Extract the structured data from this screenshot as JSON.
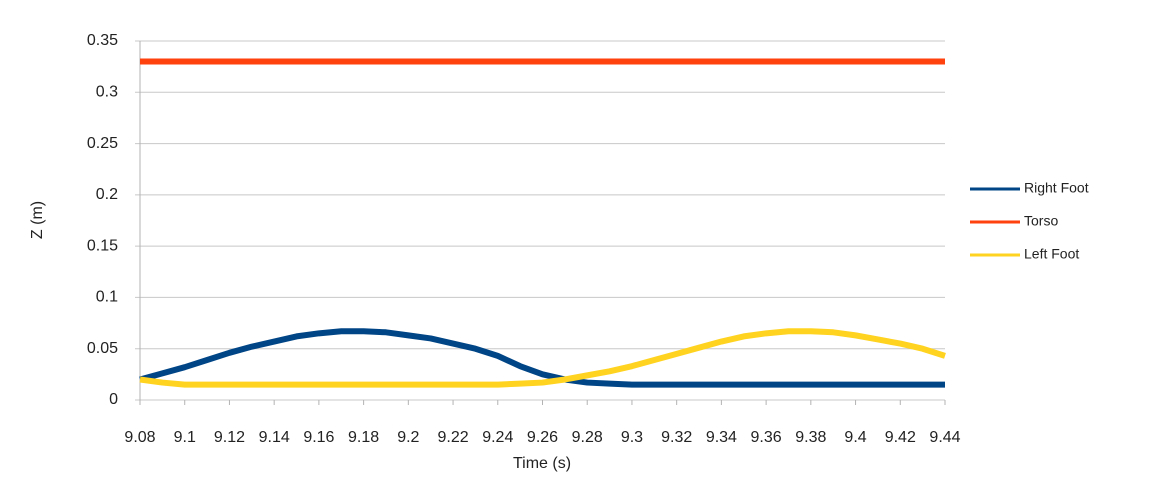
{
  "chart_data": {
    "type": "line",
    "x_label": "Time (s)",
    "y_label": "Z (m)",
    "x": [
      9.08,
      9.09,
      9.1,
      9.11,
      9.12,
      9.13,
      9.14,
      9.15,
      9.16,
      9.17,
      9.18,
      9.19,
      9.2,
      9.21,
      9.22,
      9.23,
      9.24,
      9.25,
      9.26,
      9.27,
      9.28,
      9.29,
      9.3,
      9.31,
      9.32,
      9.33,
      9.34,
      9.35,
      9.36,
      9.37,
      9.38,
      9.39,
      9.4,
      9.41,
      9.42,
      9.43,
      9.44
    ],
    "series": [
      {
        "name": "Right Foot",
        "color": "#004586",
        "values": [
          0.02,
          0.026,
          0.032,
          0.039,
          0.046,
          0.052,
          0.057,
          0.062,
          0.065,
          0.067,
          0.067,
          0.066,
          0.063,
          0.06,
          0.055,
          0.05,
          0.043,
          0.033,
          0.025,
          0.02,
          0.017,
          0.016,
          0.015,
          0.015,
          0.015,
          0.015,
          0.015,
          0.015,
          0.015,
          0.015,
          0.015,
          0.015,
          0.015,
          0.015,
          0.015,
          0.015,
          0.015
        ]
      },
      {
        "name": "Torso",
        "color": "#ff420e",
        "values": [
          0.33,
          0.33,
          0.33,
          0.33,
          0.33,
          0.33,
          0.33,
          0.33,
          0.33,
          0.33,
          0.33,
          0.33,
          0.33,
          0.33,
          0.33,
          0.33,
          0.33,
          0.33,
          0.33,
          0.33,
          0.33,
          0.33,
          0.33,
          0.33,
          0.33,
          0.33,
          0.33,
          0.33,
          0.33,
          0.33,
          0.33,
          0.33,
          0.33,
          0.33,
          0.33,
          0.33,
          0.33
        ]
      },
      {
        "name": "Left Foot",
        "color": "#ffd320",
        "values": [
          0.02,
          0.017,
          0.015,
          0.015,
          0.015,
          0.015,
          0.015,
          0.015,
          0.015,
          0.015,
          0.015,
          0.015,
          0.015,
          0.015,
          0.015,
          0.015,
          0.015,
          0.016,
          0.017,
          0.02,
          0.024,
          0.028,
          0.033,
          0.039,
          0.045,
          0.051,
          0.057,
          0.062,
          0.065,
          0.067,
          0.067,
          0.066,
          0.063,
          0.059,
          0.055,
          0.05,
          0.043
        ]
      }
    ],
    "xlim": [
      9.08,
      9.44
    ],
    "xticks": [
      9.08,
      9.1,
      9.12,
      9.14,
      9.16,
      9.18,
      9.2,
      9.22,
      9.24,
      9.26,
      9.28,
      9.3,
      9.32,
      9.34,
      9.36,
      9.38,
      9.4,
      9.42,
      9.44
    ],
    "ylim": [
      0,
      0.35
    ],
    "yticks": [
      0,
      0.05,
      0.1,
      0.15,
      0.2,
      0.25,
      0.3,
      0.35
    ],
    "grid": true,
    "legend": "right"
  }
}
